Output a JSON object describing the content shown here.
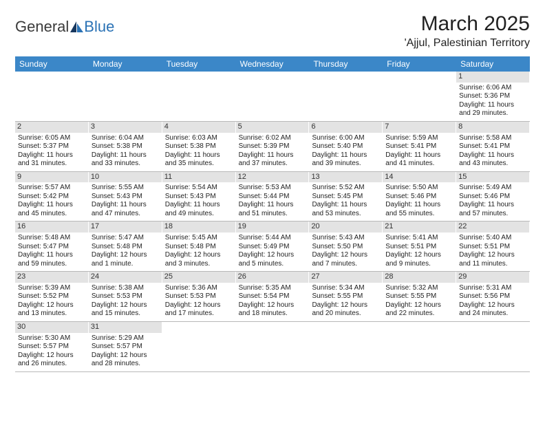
{
  "brand": {
    "part1": "General",
    "part2": "Blue"
  },
  "title": "March 2025",
  "location": "'Ajjul, Palestinian Territory",
  "colors": {
    "header_bg": "#3b87c8",
    "header_text": "#ffffff",
    "daynum_bg": "#e3e3e3",
    "row_border": "#b8b8b8",
    "logo_blue": "#2a72b5",
    "body_text": "#222222"
  },
  "day_headers": [
    "Sunday",
    "Monday",
    "Tuesday",
    "Wednesday",
    "Thursday",
    "Friday",
    "Saturday"
  ],
  "weeks": [
    [
      {
        "n": "",
        "sr": "",
        "ss": "",
        "dl": ""
      },
      {
        "n": "",
        "sr": "",
        "ss": "",
        "dl": ""
      },
      {
        "n": "",
        "sr": "",
        "ss": "",
        "dl": ""
      },
      {
        "n": "",
        "sr": "",
        "ss": "",
        "dl": ""
      },
      {
        "n": "",
        "sr": "",
        "ss": "",
        "dl": ""
      },
      {
        "n": "",
        "sr": "",
        "ss": "",
        "dl": ""
      },
      {
        "n": "1",
        "sr": "Sunrise: 6:06 AM",
        "ss": "Sunset: 5:36 PM",
        "dl": "Daylight: 11 hours and 29 minutes."
      }
    ],
    [
      {
        "n": "2",
        "sr": "Sunrise: 6:05 AM",
        "ss": "Sunset: 5:37 PM",
        "dl": "Daylight: 11 hours and 31 minutes."
      },
      {
        "n": "3",
        "sr": "Sunrise: 6:04 AM",
        "ss": "Sunset: 5:38 PM",
        "dl": "Daylight: 11 hours and 33 minutes."
      },
      {
        "n": "4",
        "sr": "Sunrise: 6:03 AM",
        "ss": "Sunset: 5:38 PM",
        "dl": "Daylight: 11 hours and 35 minutes."
      },
      {
        "n": "5",
        "sr": "Sunrise: 6:02 AM",
        "ss": "Sunset: 5:39 PM",
        "dl": "Daylight: 11 hours and 37 minutes."
      },
      {
        "n": "6",
        "sr": "Sunrise: 6:00 AM",
        "ss": "Sunset: 5:40 PM",
        "dl": "Daylight: 11 hours and 39 minutes."
      },
      {
        "n": "7",
        "sr": "Sunrise: 5:59 AM",
        "ss": "Sunset: 5:41 PM",
        "dl": "Daylight: 11 hours and 41 minutes."
      },
      {
        "n": "8",
        "sr": "Sunrise: 5:58 AM",
        "ss": "Sunset: 5:41 PM",
        "dl": "Daylight: 11 hours and 43 minutes."
      }
    ],
    [
      {
        "n": "9",
        "sr": "Sunrise: 5:57 AM",
        "ss": "Sunset: 5:42 PM",
        "dl": "Daylight: 11 hours and 45 minutes."
      },
      {
        "n": "10",
        "sr": "Sunrise: 5:55 AM",
        "ss": "Sunset: 5:43 PM",
        "dl": "Daylight: 11 hours and 47 minutes."
      },
      {
        "n": "11",
        "sr": "Sunrise: 5:54 AM",
        "ss": "Sunset: 5:43 PM",
        "dl": "Daylight: 11 hours and 49 minutes."
      },
      {
        "n": "12",
        "sr": "Sunrise: 5:53 AM",
        "ss": "Sunset: 5:44 PM",
        "dl": "Daylight: 11 hours and 51 minutes."
      },
      {
        "n": "13",
        "sr": "Sunrise: 5:52 AM",
        "ss": "Sunset: 5:45 PM",
        "dl": "Daylight: 11 hours and 53 minutes."
      },
      {
        "n": "14",
        "sr": "Sunrise: 5:50 AM",
        "ss": "Sunset: 5:46 PM",
        "dl": "Daylight: 11 hours and 55 minutes."
      },
      {
        "n": "15",
        "sr": "Sunrise: 5:49 AM",
        "ss": "Sunset: 5:46 PM",
        "dl": "Daylight: 11 hours and 57 minutes."
      }
    ],
    [
      {
        "n": "16",
        "sr": "Sunrise: 5:48 AM",
        "ss": "Sunset: 5:47 PM",
        "dl": "Daylight: 11 hours and 59 minutes."
      },
      {
        "n": "17",
        "sr": "Sunrise: 5:47 AM",
        "ss": "Sunset: 5:48 PM",
        "dl": "Daylight: 12 hours and 1 minute."
      },
      {
        "n": "18",
        "sr": "Sunrise: 5:45 AM",
        "ss": "Sunset: 5:48 PM",
        "dl": "Daylight: 12 hours and 3 minutes."
      },
      {
        "n": "19",
        "sr": "Sunrise: 5:44 AM",
        "ss": "Sunset: 5:49 PM",
        "dl": "Daylight: 12 hours and 5 minutes."
      },
      {
        "n": "20",
        "sr": "Sunrise: 5:43 AM",
        "ss": "Sunset: 5:50 PM",
        "dl": "Daylight: 12 hours and 7 minutes."
      },
      {
        "n": "21",
        "sr": "Sunrise: 5:41 AM",
        "ss": "Sunset: 5:51 PM",
        "dl": "Daylight: 12 hours and 9 minutes."
      },
      {
        "n": "22",
        "sr": "Sunrise: 5:40 AM",
        "ss": "Sunset: 5:51 PM",
        "dl": "Daylight: 12 hours and 11 minutes."
      }
    ],
    [
      {
        "n": "23",
        "sr": "Sunrise: 5:39 AM",
        "ss": "Sunset: 5:52 PM",
        "dl": "Daylight: 12 hours and 13 minutes."
      },
      {
        "n": "24",
        "sr": "Sunrise: 5:38 AM",
        "ss": "Sunset: 5:53 PM",
        "dl": "Daylight: 12 hours and 15 minutes."
      },
      {
        "n": "25",
        "sr": "Sunrise: 5:36 AM",
        "ss": "Sunset: 5:53 PM",
        "dl": "Daylight: 12 hours and 17 minutes."
      },
      {
        "n": "26",
        "sr": "Sunrise: 5:35 AM",
        "ss": "Sunset: 5:54 PM",
        "dl": "Daylight: 12 hours and 18 minutes."
      },
      {
        "n": "27",
        "sr": "Sunrise: 5:34 AM",
        "ss": "Sunset: 5:55 PM",
        "dl": "Daylight: 12 hours and 20 minutes."
      },
      {
        "n": "28",
        "sr": "Sunrise: 5:32 AM",
        "ss": "Sunset: 5:55 PM",
        "dl": "Daylight: 12 hours and 22 minutes."
      },
      {
        "n": "29",
        "sr": "Sunrise: 5:31 AM",
        "ss": "Sunset: 5:56 PM",
        "dl": "Daylight: 12 hours and 24 minutes."
      }
    ],
    [
      {
        "n": "30",
        "sr": "Sunrise: 5:30 AM",
        "ss": "Sunset: 5:57 PM",
        "dl": "Daylight: 12 hours and 26 minutes."
      },
      {
        "n": "31",
        "sr": "Sunrise: 5:29 AM",
        "ss": "Sunset: 5:57 PM",
        "dl": "Daylight: 12 hours and 28 minutes."
      },
      {
        "n": "",
        "sr": "",
        "ss": "",
        "dl": ""
      },
      {
        "n": "",
        "sr": "",
        "ss": "",
        "dl": ""
      },
      {
        "n": "",
        "sr": "",
        "ss": "",
        "dl": ""
      },
      {
        "n": "",
        "sr": "",
        "ss": "",
        "dl": ""
      },
      {
        "n": "",
        "sr": "",
        "ss": "",
        "dl": ""
      }
    ]
  ]
}
